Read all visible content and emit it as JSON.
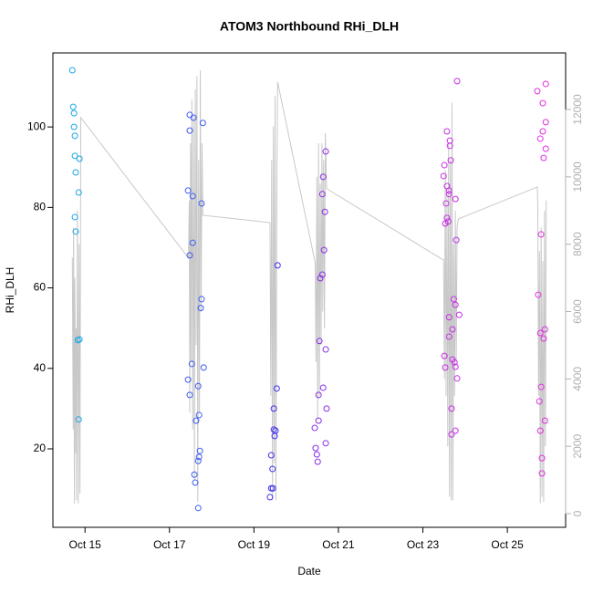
{
  "chart_data": {
    "type": "scatter",
    "title": "ATOM3 Northbound RHi_DLH",
    "x_label": "Date",
    "y_label": "RHi_DLH",
    "xlim": [
      14.24,
      26.38
    ],
    "xticks": [
      {
        "value": 15,
        "label": "Oct 15"
      },
      {
        "value": 17,
        "label": "Oct 17"
      },
      {
        "value": 19,
        "label": "Oct 19"
      },
      {
        "value": 21,
        "label": "Oct 21"
      },
      {
        "value": 23,
        "label": "Oct 23"
      },
      {
        "value": 25,
        "label": "Oct 25"
      }
    ],
    "ylim": [
      0.5,
      118.4
    ],
    "yticks": [
      20,
      40,
      60,
      80,
      100
    ],
    "y2lim": [
      -406,
      13680
    ],
    "y2ticks": [
      0,
      2000,
      4000,
      6000,
      8000,
      10000,
      12000
    ],
    "series": [
      {
        "type": "line",
        "axis": "y2",
        "color": "#c8c8c8",
        "x": [
          14.7,
          14.72,
          14.73,
          14.75,
          14.76,
          14.78,
          14.79,
          14.8,
          14.82,
          14.84,
          14.86,
          14.88,
          14.9,
          17.45,
          17.47,
          17.48,
          17.5,
          17.51,
          17.53,
          17.55,
          17.57,
          17.59,
          17.61,
          17.63,
          17.65,
          17.67,
          17.69,
          17.71,
          17.73,
          17.75,
          17.77,
          17.79,
          19.38,
          19.4,
          19.42,
          19.44,
          19.46,
          19.48,
          19.5,
          19.52,
          19.54,
          19.56,
          20.45,
          20.47,
          20.49,
          20.51,
          20.53,
          20.55,
          20.57,
          20.59,
          20.61,
          20.63,
          20.65,
          20.67,
          20.69,
          20.72,
          23.49,
          23.51,
          23.53,
          23.55,
          23.57,
          23.59,
          23.61,
          23.63,
          23.65,
          23.67,
          23.69,
          23.71,
          23.73,
          23.75,
          23.77,
          23.79,
          23.81,
          23.84,
          25.71,
          25.72,
          25.74,
          25.76,
          25.78,
          25.8,
          25.82,
          25.84,
          25.86,
          25.88,
          25.9,
          25.92
        ],
        "values": [
          7600,
          2500,
          8500,
          300,
          7000,
          1800,
          5500,
          400,
          9000,
          300,
          8000,
          600,
          11760,
          7590,
          9300,
          3000,
          11000,
          4500,
          12300,
          2500,
          11800,
          1000,
          12600,
          5000,
          13000,
          350,
          10500,
          3000,
          13170,
          6000,
          11000,
          8860,
          8640,
          3500,
          10500,
          400,
          11500,
          1500,
          12400,
          400,
          9000,
          12820,
          7450,
          4500,
          10000,
          2800,
          11000,
          3500,
          9800,
          5000,
          11000,
          6000,
          10500,
          5500,
          11300,
          9650,
          7530,
          4000,
          10200,
          3500,
          9500,
          2000,
          11000,
          500,
          10500,
          400,
          12200,
          400,
          8000,
          3500,
          9000,
          4500,
          8500,
          8750,
          9700,
          9100,
          3500,
          7800,
          300,
          8500,
          500,
          7500,
          350,
          9000,
          2000,
          9300
        ]
      },
      {
        "color": "#1aa6e6",
        "x": [
          14.7,
          14.72,
          14.74,
          14.74,
          14.76,
          14.76,
          14.87,
          14.78,
          14.85,
          14.76,
          14.78,
          14.83,
          14.87,
          14.85
        ],
        "values": [
          114.1,
          105,
          103.4,
          100,
          97.8,
          92.8,
          92.1,
          88.7,
          83.7,
          77.6,
          74,
          47,
          47.2,
          27.3
        ]
      },
      {
        "color": "#3c5cf2",
        "x": [
          17.48,
          17.57,
          17.48,
          17.79,
          17.44,
          17.55,
          17.76,
          17.55,
          17.48,
          17.76,
          17.74,
          17.53,
          17.81,
          17.44,
          17.68,
          17.48,
          17.7,
          17.63,
          17.72,
          17.7,
          17.68,
          17.59,
          17.61,
          17.68
        ],
        "values": [
          103,
          102.3,
          99.1,
          101,
          84.2,
          82.8,
          81,
          71.2,
          68.1,
          57.2,
          55,
          41.1,
          40.2,
          37.2,
          35.6,
          33.4,
          28.4,
          27,
          19.5,
          18,
          17,
          13.6,
          11.6,
          5.3
        ]
      },
      {
        "color": "#3a2ef0",
        "x": [
          19.56,
          19.54,
          19.47,
          19.47,
          19.51,
          19.49,
          19.41,
          19.44,
          19.41,
          19.45,
          19.38
        ],
        "values": [
          65.6,
          35,
          30,
          24.8,
          24.5,
          23.2,
          18.4,
          15,
          10.2,
          10.2,
          8
        ]
      },
      {
        "color": "#8a2ee6",
        "x": [
          20.7,
          20.64,
          20.62,
          20.68,
          20.66,
          20.62,
          20.57,
          20.55,
          20.7,
          20.64,
          20.53,
          20.72,
          20.53,
          20.44,
          20.46,
          20.49,
          20.51,
          20.7
        ],
        "values": [
          93.9,
          87.6,
          83.3,
          78.9,
          69.4,
          63.3,
          62.4,
          46.8,
          44.7,
          35.2,
          33.4,
          30,
          27,
          25.2,
          20.2,
          18.6,
          16.8,
          21.4
        ]
      },
      {
        "color": "#c82ee6",
        "x": [
          23.81,
          23.57,
          23.64,
          23.64,
          23.66,
          23.51,
          23.49,
          23.57,
          23.62,
          23.62,
          23.77,
          23.55,
          23.57,
          23.53,
          23.6,
          23.79,
          23.73,
          23.77,
          23.62,
          23.86,
          23.7,
          23.62,
          23.51,
          23.7,
          23.75,
          23.77,
          23.53,
          23.81,
          23.68,
          23.77,
          23.68
        ],
        "values": [
          111.4,
          98.9,
          96.6,
          95.3,
          91.7,
          90.5,
          87.8,
          85.3,
          84.2,
          83.3,
          82.1,
          81,
          77.4,
          76,
          76.5,
          71.9,
          57.2,
          55.8,
          52.7,
          53.3,
          49.7,
          47.9,
          43.1,
          42.2,
          41.5,
          40.4,
          40.2,
          37.5,
          30,
          24.5,
          23.6
        ]
      },
      {
        "color": "#e22ee2",
        "x": [
          25.91,
          25.71,
          25.84,
          25.91,
          25.84,
          25.78,
          25.91,
          25.86,
          25.8,
          25.73,
          25.89,
          25.78,
          25.86,
          25.8,
          25.76,
          25.89,
          25.78,
          25.82,
          25.82
        ],
        "values": [
          110.7,
          108.9,
          105.9,
          101.2,
          98.9,
          97.1,
          94.6,
          92.3,
          73.3,
          58.3,
          49.7,
          48.8,
          47.4,
          35.4,
          31.8,
          27,
          24.5,
          17.7,
          13.9
        ]
      }
    ]
  }
}
